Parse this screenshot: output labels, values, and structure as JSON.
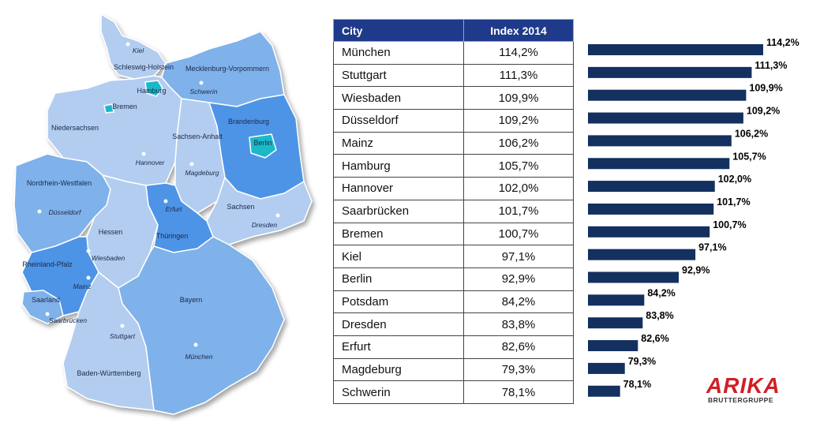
{
  "map": {
    "states": {
      "schleswig_holstein": "Schleswig-Holstein",
      "mecklenburg": "Mecklenburg-Vorpommern",
      "hamburg": "Hamburg",
      "bremen": "Bremen",
      "niedersachsen": "Niedersachsen",
      "brandenburg": "Brandenburg",
      "berlin": "Berlin",
      "sachsen_anhalt": "Sachsen-Anhalt",
      "nordrhein_westfalen": "Nordrhein-Westfalen",
      "sachsen": "Sachsen",
      "hessen": "Hessen",
      "thueringen": "Thüringen",
      "rheinland_pfalz": "Rheinland-Pfalz",
      "saarland": "Saarland",
      "bayern": "Bayern",
      "baden_wuerttemberg": "Baden-Württemberg"
    },
    "cities": {
      "kiel": "Kiel",
      "schwerin": "Schwerin",
      "hannover": "Hannover",
      "magdeburg": "Magdeburg",
      "duesseldorf": "Düsseldorf",
      "dresden": "Dresden",
      "erfurt": "Erfurt",
      "wiesbaden": "Wiesbaden",
      "mainz": "Mainz",
      "saarbruecken": "Saarbrücken",
      "stuttgart": "Stuttgart",
      "muenchen": "München"
    },
    "colors": {
      "light": "#b3cdf0",
      "mid": "#7fb1ea",
      "dark": "#4d94e6",
      "highlight": "#1ab8c8"
    }
  },
  "table": {
    "headers": {
      "city": "City",
      "index": "Index 2014"
    },
    "rows": [
      {
        "city": "München",
        "index": "114,2%"
      },
      {
        "city": "Stuttgart",
        "index": "111,3%"
      },
      {
        "city": "Wiesbaden",
        "index": "109,9%"
      },
      {
        "city": "Düsseldorf",
        "index": "109,2%"
      },
      {
        "city": "Mainz",
        "index": "106,2%"
      },
      {
        "city": "Hamburg",
        "index": "105,7%"
      },
      {
        "city": "Hannover",
        "index": "102,0%"
      },
      {
        "city": "Saarbrücken",
        "index": "101,7%"
      },
      {
        "city": "Bremen",
        "index": "100,7%"
      },
      {
        "city": "Kiel",
        "index": "97,1%"
      },
      {
        "city": "Berlin",
        "index": "92,9%"
      },
      {
        "city": "Potsdam",
        "index": "84,2%"
      },
      {
        "city": "Dresden",
        "index": "83,8%"
      },
      {
        "city": "Erfurt",
        "index": "82,6%"
      },
      {
        "city": "Magdeburg",
        "index": "79,3%"
      },
      {
        "city": "Schwerin",
        "index": "78,1%"
      }
    ],
    "header_color": "#1f3a8a"
  },
  "chart_data": {
    "type": "bar",
    "orientation": "horizontal",
    "categories": [
      "München",
      "Stuttgart",
      "Wiesbaden",
      "Düsseldorf",
      "Mainz",
      "Hamburg",
      "Hannover",
      "Saarbrücken",
      "Bremen",
      "Kiel",
      "Berlin",
      "Potsdam",
      "Dresden",
      "Erfurt",
      "Magdeburg",
      "Schwerin"
    ],
    "values": [
      114.2,
      111.3,
      109.9,
      109.2,
      106.2,
      105.7,
      102.0,
      101.7,
      100.7,
      97.1,
      92.9,
      84.2,
      83.8,
      82.6,
      79.3,
      78.1
    ],
    "value_labels": [
      "114,2%",
      "111,3%",
      "109,9%",
      "109,2%",
      "106,2%",
      "105,7%",
      "102,0%",
      "101,7%",
      "100,7%",
      "97,1%",
      "92,9%",
      "84,2%",
      "83,8%",
      "82,6%",
      "79,3%",
      "78,1%"
    ],
    "xlim": [
      70,
      114.2
    ],
    "bar_color": "#13305f",
    "grid": false
  },
  "logo": {
    "brand": "ARIKA",
    "sub": "BRUTTERGRUPPE"
  }
}
